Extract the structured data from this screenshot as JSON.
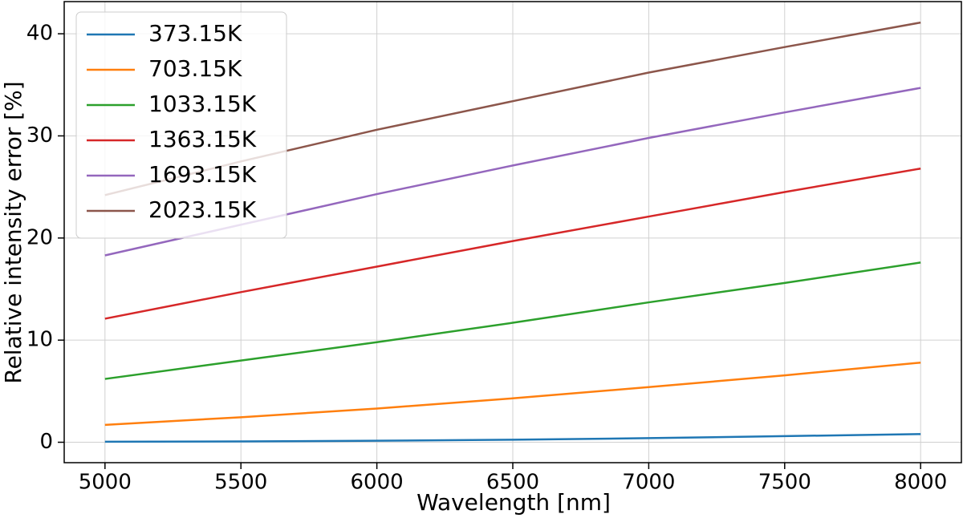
{
  "chart_data": {
    "type": "line",
    "xlabel": "Wavelength [nm]",
    "ylabel": "Relative intensity error [%]",
    "x": [
      5000,
      5500,
      6000,
      6500,
      7000,
      7500,
      8000
    ],
    "series": [
      {
        "name": "373.15K",
        "color": "#1f77b4",
        "values": [
          0.05,
          0.08,
          0.15,
          0.25,
          0.4,
          0.6,
          0.8
        ]
      },
      {
        "name": "703.15K",
        "color": "#ff7f0e",
        "values": [
          1.7,
          2.45,
          3.3,
          4.3,
          5.4,
          6.55,
          7.8
        ]
      },
      {
        "name": "1033.15K",
        "color": "#2ca02c",
        "values": [
          6.2,
          8.0,
          9.8,
          11.7,
          13.7,
          15.6,
          17.6
        ]
      },
      {
        "name": "1363.15K",
        "color": "#d62728",
        "values": [
          12.1,
          14.7,
          17.2,
          19.7,
          22.1,
          24.5,
          26.8
        ]
      },
      {
        "name": "1693.15K",
        "color": "#9467bd",
        "values": [
          18.3,
          21.3,
          24.3,
          27.1,
          29.8,
          32.3,
          34.7
        ]
      },
      {
        "name": "2023.15K",
        "color": "#8c564b",
        "values": [
          24.2,
          27.5,
          30.6,
          33.4,
          36.2,
          38.7,
          41.1
        ]
      }
    ],
    "xlim": [
      4850,
      8150
    ],
    "xticks": [
      5000,
      5500,
      6000,
      6500,
      7000,
      7500,
      8000
    ],
    "ylim": [
      -2.0,
      43.15
    ],
    "yticks": [
      0,
      10,
      20,
      30,
      40
    ],
    "grid": true,
    "legend": "upper-left"
  }
}
